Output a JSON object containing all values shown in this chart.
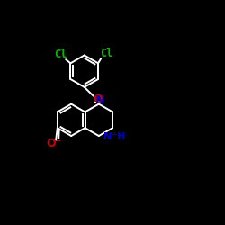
{
  "background": "#000000",
  "white": "#ffffff",
  "green": "#00bb00",
  "red": "#cc0000",
  "blue": "#0000cc",
  "figsize": [
    2.5,
    2.5
  ],
  "dpi": 100,
  "xlim": [
    -1,
    11
  ],
  "ylim": [
    -1,
    11
  ]
}
